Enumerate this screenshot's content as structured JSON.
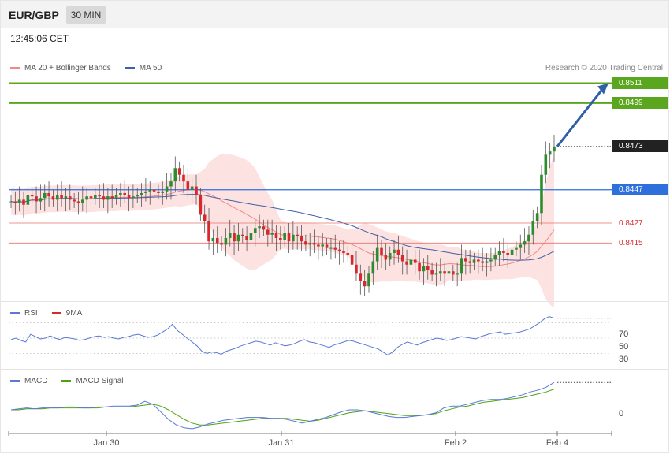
{
  "header": {
    "pair": "EUR/GBP",
    "timeframe": "30 MIN"
  },
  "timestamp": "12:45:06 CET",
  "credit": "Research © 2020 Trading Central",
  "colors": {
    "resistance": "#5aa61e",
    "support": "#2f6fdb",
    "pivot_red": "#e8726a",
    "current": "#222222",
    "bull": "#2e8b2e",
    "bear": "#d9282d",
    "bollinger": "#fde2e2",
    "ma20": "#f08a84",
    "ma50": "#3f5fa8",
    "rsi": "#5a78d6",
    "macd": "#5a78d6",
    "macd_signal": "#4ea313",
    "arrow": "#2f5fa6"
  },
  "chart_data": [
    {
      "type": "candlestick",
      "title": "EUR/GBP",
      "legend": [
        {
          "name": "MA 20 + Bollinger Bands",
          "color": "#f08a84"
        },
        {
          "name": "MA 50",
          "color": "#3f5fa8"
        }
      ],
      "x_tick_labels": [
        "Jan 30",
        "Jan 31",
        "Feb 2",
        "Feb 4"
      ],
      "ylim": [
        0.8382,
        0.8516
      ],
      "candles_close_approx": [
        0.844,
        0.8439,
        0.8441,
        0.8438,
        0.8444,
        0.8443,
        0.844,
        0.8442,
        0.8445,
        0.8443,
        0.8441,
        0.8444,
        0.8442,
        0.8443,
        0.8441,
        0.844,
        0.8439,
        0.8441,
        0.8443,
        0.8442,
        0.8444,
        0.8443,
        0.8441,
        0.8443,
        0.8442,
        0.8444,
        0.8445,
        0.8444,
        0.8442,
        0.8443,
        0.8444,
        0.8445,
        0.8446,
        0.8447,
        0.8446,
        0.8445,
        0.8446,
        0.8449,
        0.8452,
        0.846,
        0.8456,
        0.8452,
        0.8447,
        0.8449,
        0.8444,
        0.8432,
        0.8428,
        0.8416,
        0.8418,
        0.8415,
        0.8414,
        0.8418,
        0.8421,
        0.8416,
        0.842,
        0.8419,
        0.8417,
        0.8421,
        0.8424,
        0.8425,
        0.8423,
        0.842,
        0.8421,
        0.8418,
        0.8417,
        0.8421,
        0.8416,
        0.842,
        0.8419,
        0.8416,
        0.8414,
        0.8415,
        0.8414,
        0.8413,
        0.8414,
        0.8412,
        0.8412,
        0.8411,
        0.841,
        0.8409,
        0.8408,
        0.8402,
        0.8397,
        0.8392,
        0.8389,
        0.8397,
        0.8404,
        0.8412,
        0.8408,
        0.8405,
        0.8409,
        0.8411,
        0.8408,
        0.8404,
        0.8402,
        0.8405,
        0.8403,
        0.8398,
        0.8401,
        0.8399,
        0.8396,
        0.8397,
        0.8398,
        0.8397,
        0.8398,
        0.8396,
        0.8397,
        0.8406,
        0.8404,
        0.8403,
        0.8405,
        0.8404,
        0.8403,
        0.8404,
        0.8405,
        0.8408,
        0.841,
        0.8409,
        0.8408,
        0.8411,
        0.8412,
        0.8414,
        0.8416,
        0.842,
        0.8428,
        0.8433,
        0.8456,
        0.8468,
        0.847,
        0.8473
      ],
      "price_levels": [
        {
          "label": "0.8511",
          "value": 0.8511,
          "kind": "resistance"
        },
        {
          "label": "0.8499",
          "value": 0.8499,
          "kind": "resistance"
        },
        {
          "label": "0.8473",
          "value": 0.8473,
          "kind": "current"
        },
        {
          "label": "0.8447",
          "value": 0.8447,
          "kind": "support"
        },
        {
          "label": "0.8427",
          "value": 0.8427,
          "kind": "pivot"
        },
        {
          "label": "0.8415",
          "value": 0.8415,
          "kind": "pivot"
        }
      ],
      "arrow": {
        "from": 0.8473,
        "to": 0.8511,
        "direction": "up"
      }
    },
    {
      "type": "line",
      "title": "RSI",
      "legend": [
        {
          "name": "RSI",
          "color": "#5a78d6"
        },
        {
          "name": "9MA",
          "color": "#d9282d"
        }
      ],
      "y_tick_labels": [
        "70",
        "50",
        "30"
      ],
      "ylim": [
        10,
        90
      ],
      "series": [
        {
          "name": "RSI",
          "values": [
            48,
            50,
            47,
            45,
            55,
            52,
            49,
            50,
            53,
            50,
            48,
            51,
            50,
            49,
            47,
            48,
            50,
            52,
            53,
            51,
            52,
            50,
            49,
            51,
            52,
            54,
            55,
            53,
            51,
            52,
            54,
            58,
            62,
            68,
            60,
            55,
            50,
            45,
            40,
            33,
            30,
            32,
            31,
            29,
            33,
            35,
            37,
            40,
            42,
            44,
            46,
            45,
            43,
            41,
            44,
            42,
            40,
            41,
            43,
            46,
            48,
            45,
            44,
            42,
            40,
            38,
            41,
            43,
            45,
            47,
            46,
            44,
            42,
            40,
            38,
            36,
            32,
            28,
            32,
            38,
            42,
            45,
            43,
            41,
            44,
            46,
            48,
            50,
            49,
            47,
            48,
            50,
            52,
            51,
            50,
            49,
            52,
            54,
            56,
            57,
            58,
            55,
            56,
            57,
            58,
            60,
            62,
            66,
            70,
            75,
            78,
            76
          ]
        }
      ]
    },
    {
      "type": "line",
      "title": "MACD",
      "legend": [
        {
          "name": "MACD",
          "color": "#5a78d6"
        },
        {
          "name": "MACD Signal",
          "color": "#4ea313"
        }
      ],
      "y_tick_labels": [
        "0"
      ],
      "ylim": [
        -0.0025,
        0.0035
      ],
      "series": [
        {
          "name": "MACD",
          "values": [
            0.0,
            0.0001,
            0.0002,
            0.0001,
            0.0002,
            0.0002,
            0.0002,
            0.0003,
            0.0003,
            0.0002,
            0.0002,
            0.0003,
            0.0003,
            0.0004,
            0.0004,
            0.0004,
            0.0005,
            0.0009,
            0.0006,
            -0.0002,
            -0.001,
            -0.0016,
            -0.0019,
            -0.002,
            -0.0018,
            -0.0015,
            -0.0013,
            -0.0011,
            -0.001,
            -0.0009,
            -0.0008,
            -0.0008,
            -0.0008,
            -0.0009,
            -0.0009,
            -0.001,
            -0.0012,
            -0.0014,
            -0.0012,
            -0.001,
            -0.0008,
            -0.0005,
            -0.0002,
            0.0,
            0.0,
            -0.0001,
            -0.0003,
            -0.0005,
            -0.0007,
            -0.0008,
            -0.0008,
            -0.0007,
            -0.0006,
            -0.0005,
            -0.0003,
            0.0002,
            0.0004,
            0.0004,
            0.0006,
            0.0008,
            0.001,
            0.0011,
            0.0011,
            0.0012,
            0.0014,
            0.0016,
            0.0019,
            0.0021,
            0.0024,
            0.0029
          ]
        },
        {
          "name": "MACD Signal",
          "values": [
            0.0,
            0.0,
            0.0001,
            0.0001,
            0.0001,
            0.0002,
            0.0002,
            0.0002,
            0.0002,
            0.0002,
            0.0002,
            0.0002,
            0.0003,
            0.0003,
            0.0003,
            0.0003,
            0.0004,
            0.0005,
            0.0006,
            0.0004,
            0.0,
            -0.0005,
            -0.001,
            -0.0014,
            -0.0016,
            -0.0016,
            -0.0015,
            -0.0014,
            -0.0013,
            -0.0012,
            -0.0011,
            -0.001,
            -0.0009,
            -0.0009,
            -0.0009,
            -0.0009,
            -0.001,
            -0.0011,
            -0.0012,
            -0.0011,
            -0.0009,
            -0.0007,
            -0.0005,
            -0.0003,
            -0.0002,
            -0.0001,
            -0.0002,
            -0.0003,
            -0.0004,
            -0.0005,
            -0.0006,
            -0.0006,
            -0.0006,
            -0.0005,
            -0.0004,
            -0.0001,
            0.0001,
            0.0003,
            0.0004,
            0.0006,
            0.0008,
            0.0009,
            0.001,
            0.0011,
            0.0012,
            0.0013,
            0.0015,
            0.0017,
            0.0019,
            0.0022
          ]
        }
      ]
    }
  ]
}
